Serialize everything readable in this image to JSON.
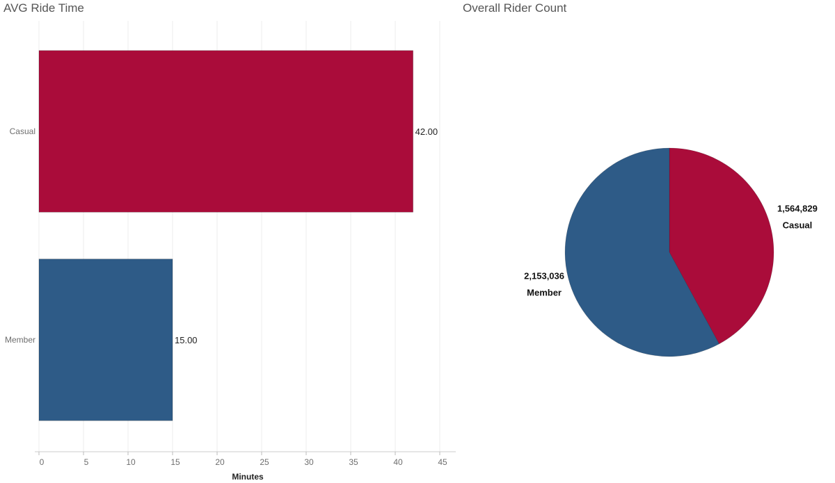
{
  "colors": {
    "casual": "#aa0c3a",
    "member": "#2e5b87",
    "grid": "#eeeeee"
  },
  "chart_data": [
    {
      "type": "bar",
      "orientation": "horizontal",
      "title": "AVG Ride Time",
      "xlabel": "Minutes",
      "ylabel": "",
      "categories": [
        "Casual",
        "Member"
      ],
      "values": [
        42.0,
        15.0
      ],
      "value_labels": [
        "42.00",
        "15.00"
      ],
      "xlim": [
        0,
        46
      ],
      "ticks": [
        0,
        5,
        10,
        15,
        20,
        25,
        30,
        35,
        40,
        45
      ],
      "grid": true,
      "legend": "none"
    },
    {
      "type": "pie",
      "title": "Overall Rider Count",
      "categories": [
        "Casual",
        "Member"
      ],
      "values": [
        1564829,
        2153036
      ],
      "value_labels": [
        "1,564,829",
        "2,153,036"
      ],
      "legend": "none"
    }
  ]
}
